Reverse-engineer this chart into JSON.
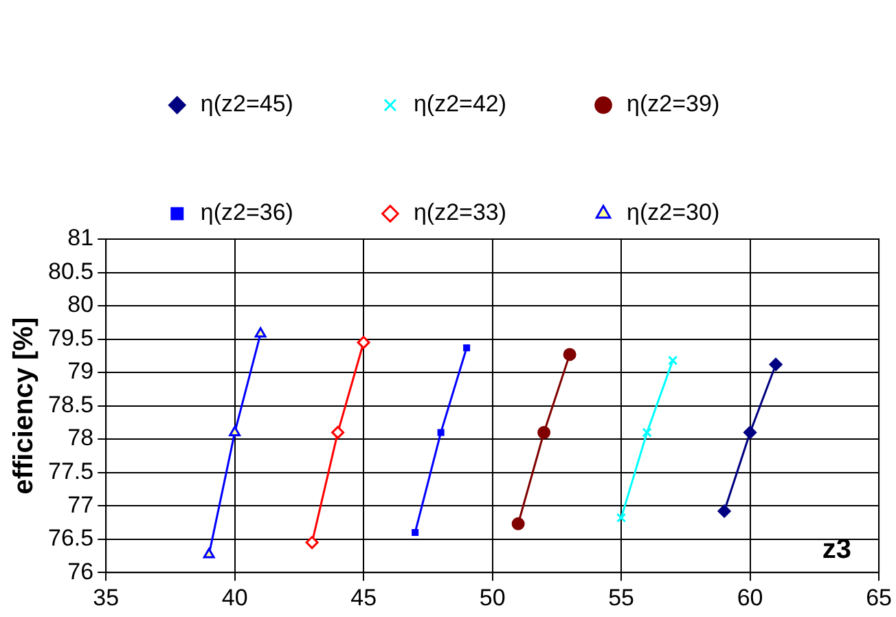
{
  "chart_data": {
    "type": "line",
    "xlabel": "z3",
    "ylabel": "efficiency [%]",
    "xlim": [
      35,
      65
    ],
    "xticks": [
      35,
      40,
      45,
      50,
      55,
      60,
      65
    ],
    "ylim": [
      76,
      81
    ],
    "yticks": [
      76,
      76.5,
      77,
      77.5,
      78,
      78.5,
      79,
      79.5,
      80,
      80.5,
      81
    ],
    "grid": true,
    "legend": "top",
    "line_style": "solid",
    "series": [
      {
        "name": "η(z2=45)",
        "color": "#000080",
        "marker": "diamond",
        "x": [
          59,
          60,
          61
        ],
        "values": [
          76.92,
          78.1,
          79.12
        ]
      },
      {
        "name": "η(z2=42)",
        "color": "#00ffff",
        "marker": "cross",
        "x": [
          55,
          56,
          57
        ],
        "values": [
          76.82,
          78.1,
          79.18
        ]
      },
      {
        "name": "η(z2=39)",
        "color": "#800000",
        "marker": "circle",
        "x": [
          51,
          52,
          53
        ],
        "values": [
          76.73,
          78.1,
          79.27
        ]
      },
      {
        "name": "η(z2=36)",
        "color": "#0000ff",
        "marker": "square",
        "x": [
          47,
          48,
          49
        ],
        "values": [
          76.6,
          78.1,
          79.37
        ]
      },
      {
        "name": "η(z2=33)",
        "color": "#ff0000",
        "marker": "diamond",
        "x": [
          43,
          44,
          45
        ],
        "values": [
          76.45,
          78.1,
          79.45
        ]
      },
      {
        "name": "η(z2=30)",
        "color": "#0000ff",
        "marker": "triangle",
        "x": [
          39,
          40,
          41
        ],
        "values": [
          76.27,
          78.1,
          79.58
        ]
      }
    ]
  }
}
